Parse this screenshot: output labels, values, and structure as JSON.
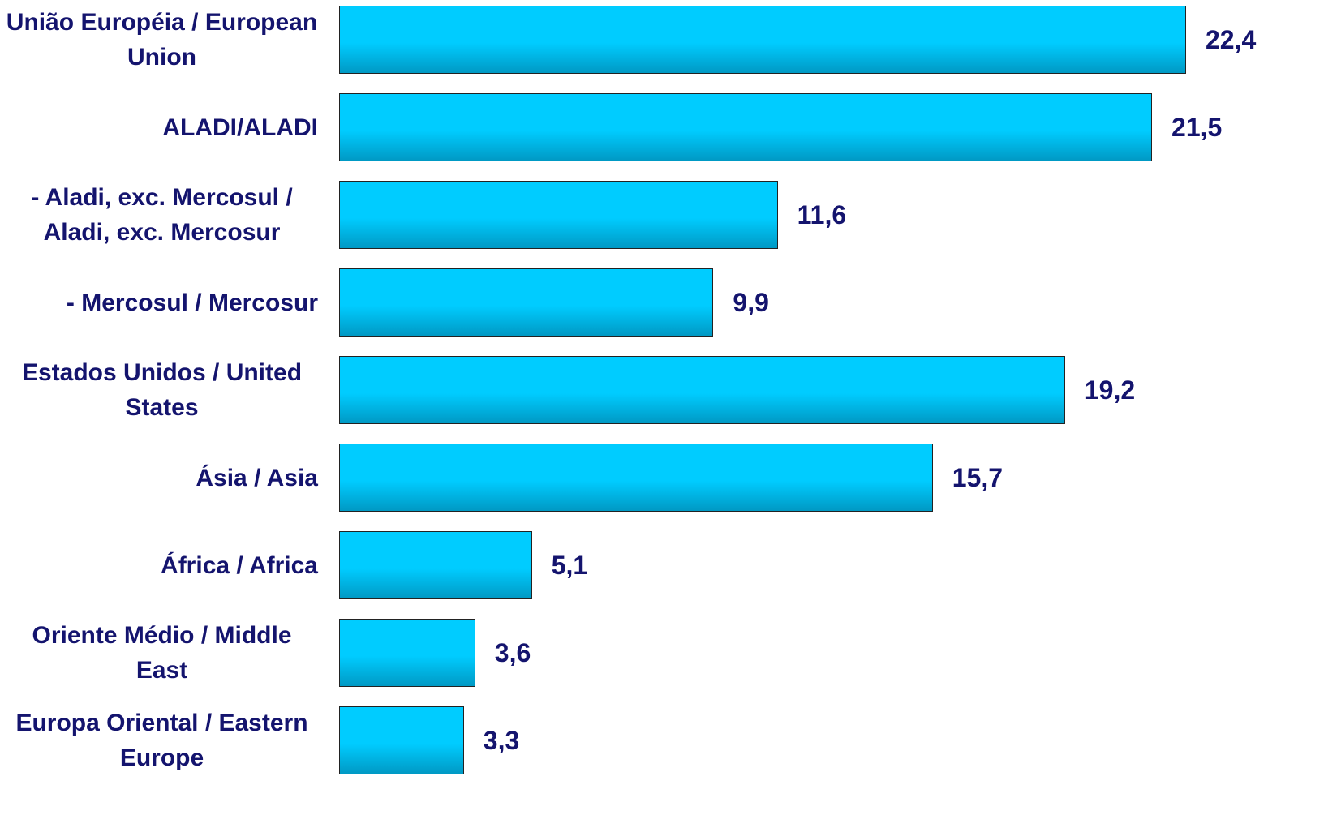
{
  "chart_data": {
    "type": "bar",
    "orientation": "horizontal",
    "categories": [
      "União Européia / European Union",
      "ALADI/ALADI",
      "- Aladi, exc. Mercosul / Aladi, exc. Mercosur",
      "- Mercosul / Mercosur",
      "Estados Unidos / United States",
      "Ásia / Asia",
      "África / Africa",
      "Oriente Médio / Middle East",
      "Europa Oriental / Eastern Europe"
    ],
    "values": [
      22.4,
      21.5,
      11.6,
      9.9,
      19.2,
      15.7,
      5.1,
      3.6,
      3.3
    ],
    "value_labels": [
      "22,4",
      "21,5",
      "11,6",
      "9,9",
      "19,2",
      "15,7",
      "5,1",
      "3,6",
      "3,3"
    ],
    "color": "#00ccff"
  }
}
